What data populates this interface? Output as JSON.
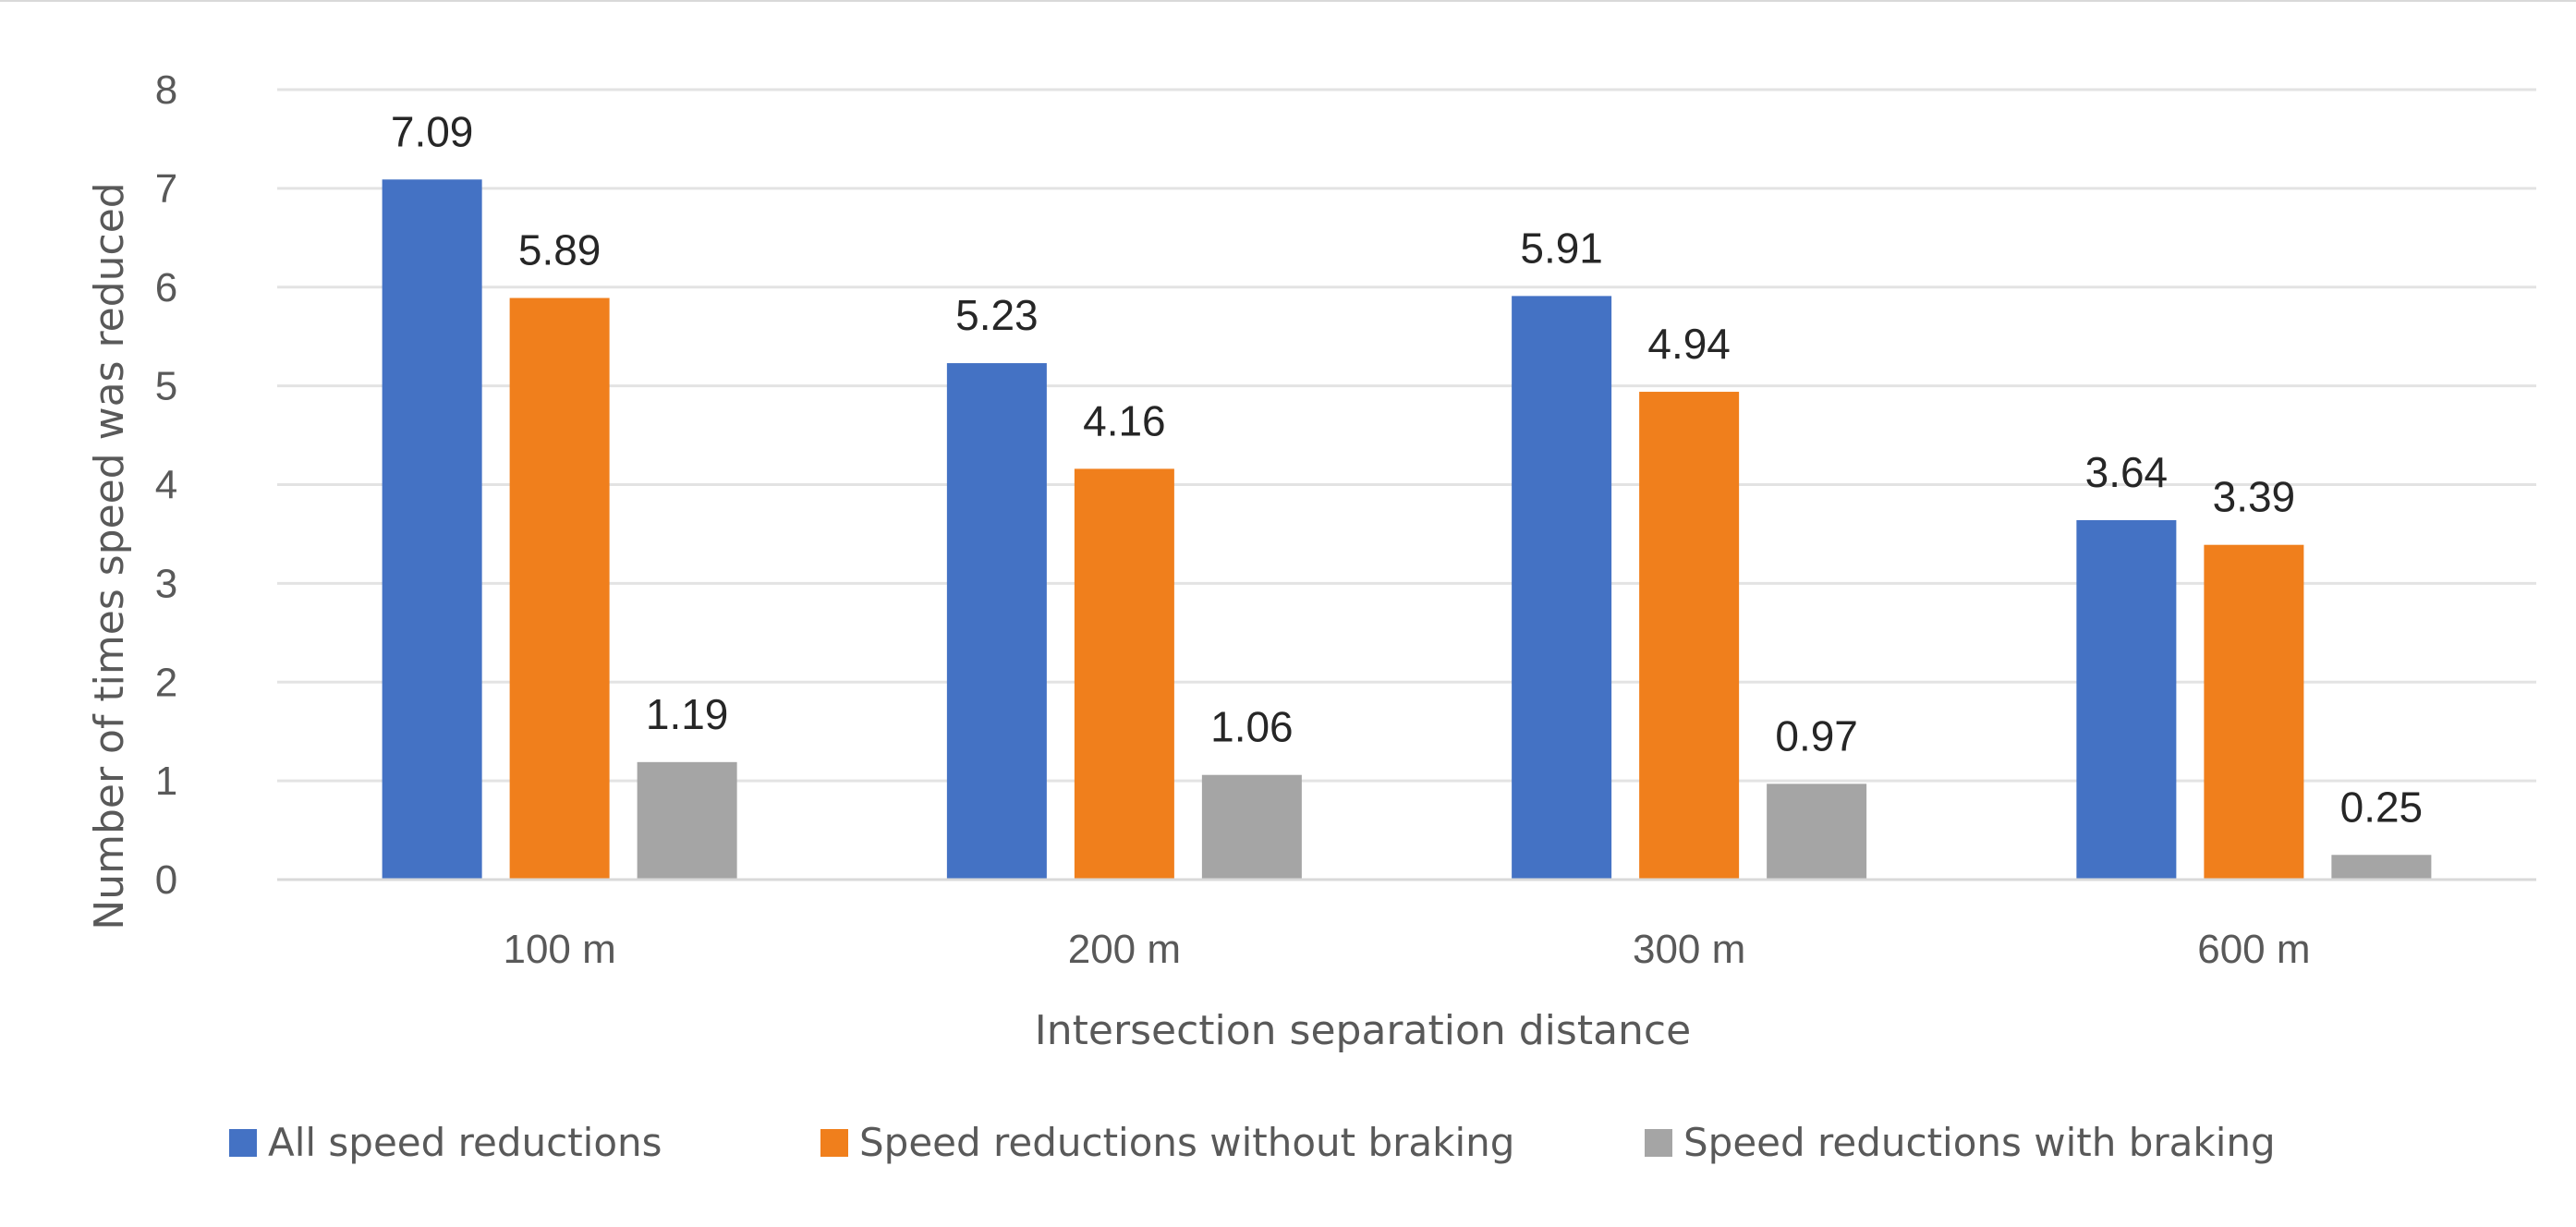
{
  "chart_data": {
    "type": "bar",
    "title": "",
    "xlabel": "Intersection separation distance",
    "ylabel": "Number of times speed was reduced",
    "categories": [
      "100 m",
      "200 m",
      "300 m",
      "600 m"
    ],
    "ylim": [
      0,
      8
    ],
    "yticks": [
      0,
      1,
      2,
      3,
      4,
      5,
      6,
      7,
      8
    ],
    "grid": true,
    "legend_position": "bottom",
    "series": [
      {
        "name": "All speed reductions",
        "color": "#4472c4",
        "values": [
          7.09,
          5.23,
          5.91,
          3.64
        ],
        "labels": [
          "7.09",
          "5.23",
          "5.91",
          "3.64"
        ]
      },
      {
        "name": "Speed reductions without braking",
        "color": "#f07f1c",
        "values": [
          5.89,
          4.16,
          4.94,
          3.39
        ],
        "labels": [
          "5.89",
          "4.16",
          "4.94",
          "3.39"
        ]
      },
      {
        "name": "Speed reductions with braking",
        "color": "#a5a5a5",
        "values": [
          1.19,
          1.06,
          0.97,
          0.25
        ],
        "labels": [
          "1.19",
          "1.06",
          "0.97",
          "0.25"
        ]
      }
    ]
  }
}
